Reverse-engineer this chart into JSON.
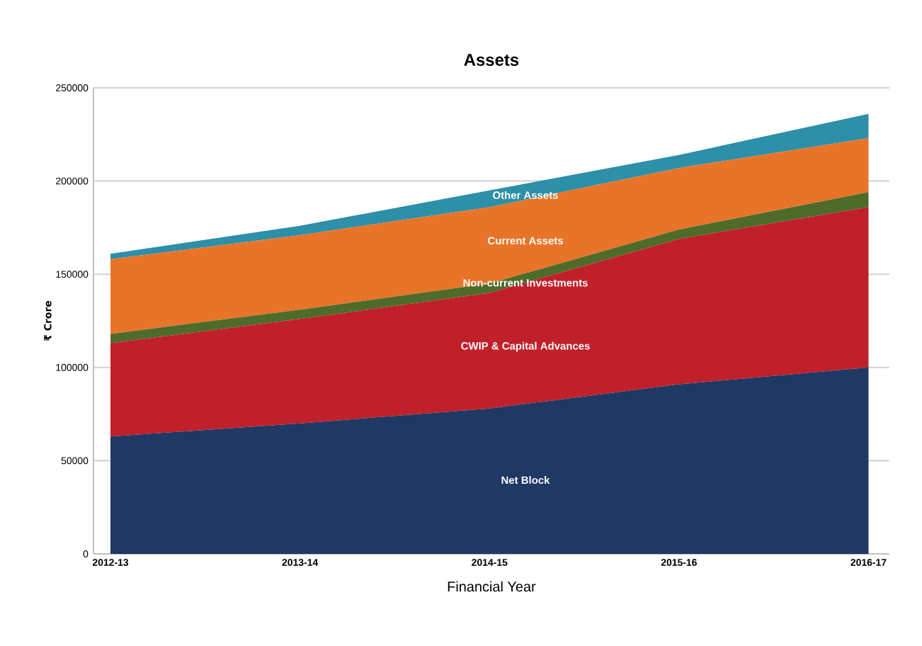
{
  "chart_data": {
    "type": "area",
    "stacked": true,
    "title": "Assets",
    "xlabel": "Financial Year",
    "ylabel": "₹ Crore",
    "categories": [
      "2012-13",
      "2013-14",
      "2014-15",
      "2015-16",
      "2016-17"
    ],
    "series": [
      {
        "name": "Net Block",
        "color": "#1f3864",
        "values": [
          63000,
          70000,
          78000,
          91000,
          100000
        ]
      },
      {
        "name": "CWIP & Capital Advances",
        "color": "#c0202a",
        "values": [
          50000,
          56000,
          62000,
          78000,
          86000
        ]
      },
      {
        "name": "Non-current Investments",
        "color": "#4e6b2a",
        "values": [
          5000,
          5000,
          5000,
          5000,
          8000
        ]
      },
      {
        "name": "Current Assets",
        "color": "#e8742a",
        "values": [
          40000,
          40000,
          41000,
          33000,
          29000
        ]
      },
      {
        "name": "Other Assets",
        "color": "#2e8fa8",
        "values": [
          3000,
          5000,
          9000,
          7000,
          13000
        ]
      }
    ],
    "ylim": [
      0,
      250000
    ],
    "yticks": [
      0,
      50000,
      100000,
      150000,
      200000,
      250000
    ],
    "grid": "y"
  }
}
